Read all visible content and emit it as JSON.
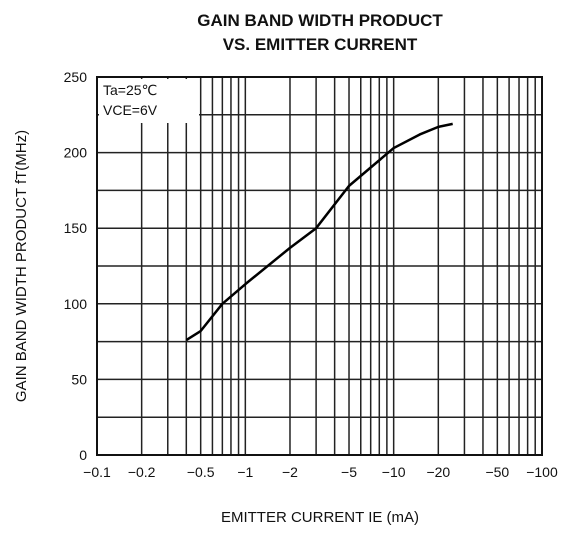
{
  "chart_data": {
    "type": "line",
    "title": [
      "GAIN BAND WIDTH PRODUCT",
      "VS. EMITTER CURRENT"
    ],
    "x_label": "EMITTER CURRENT   IE (mA)",
    "y_label": "GAIN BAND WIDTH PRODUCT   fT(MHz)",
    "annotations": [
      "Ta=25℃",
      "VCE=6V"
    ],
    "x_scale": "log",
    "xlim": [
      -0.1,
      -100
    ],
    "xticks": [
      {
        "value": -0.1,
        "label": "−0.1"
      },
      {
        "value": -0.2,
        "label": "−0.2"
      },
      {
        "value": -0.5,
        "label": "−0.5"
      },
      {
        "value": -1,
        "label": "−1"
      },
      {
        "value": -2,
        "label": "−2"
      },
      {
        "value": -5,
        "label": "−5"
      },
      {
        "value": -10,
        "label": "−10"
      },
      {
        "value": -20,
        "label": "−20"
      },
      {
        "value": -50,
        "label": "−50"
      },
      {
        "value": -100,
        "label": "−100"
      }
    ],
    "xminor": [
      -0.3,
      -0.4,
      -0.6,
      -0.7,
      -0.8,
      -0.9,
      -3,
      -4,
      -6,
      -7,
      -8,
      -9,
      -30,
      -40,
      -60,
      -70,
      -80,
      -90
    ],
    "ylim": [
      0,
      250
    ],
    "yticks": [
      0,
      50,
      100,
      150,
      200,
      250
    ],
    "yminor": [
      25,
      75,
      125,
      175,
      225
    ],
    "grid": true,
    "series": [
      {
        "color": "#000000",
        "x": [
          -0.4,
          -0.5,
          -0.7,
          -1,
          -2,
          -3,
          -5,
          -10,
          -15,
          -20,
          -25
        ],
        "values": [
          76,
          82,
          100,
          113,
          137,
          150,
          178,
          203,
          212,
          217,
          219
        ]
      }
    ]
  }
}
